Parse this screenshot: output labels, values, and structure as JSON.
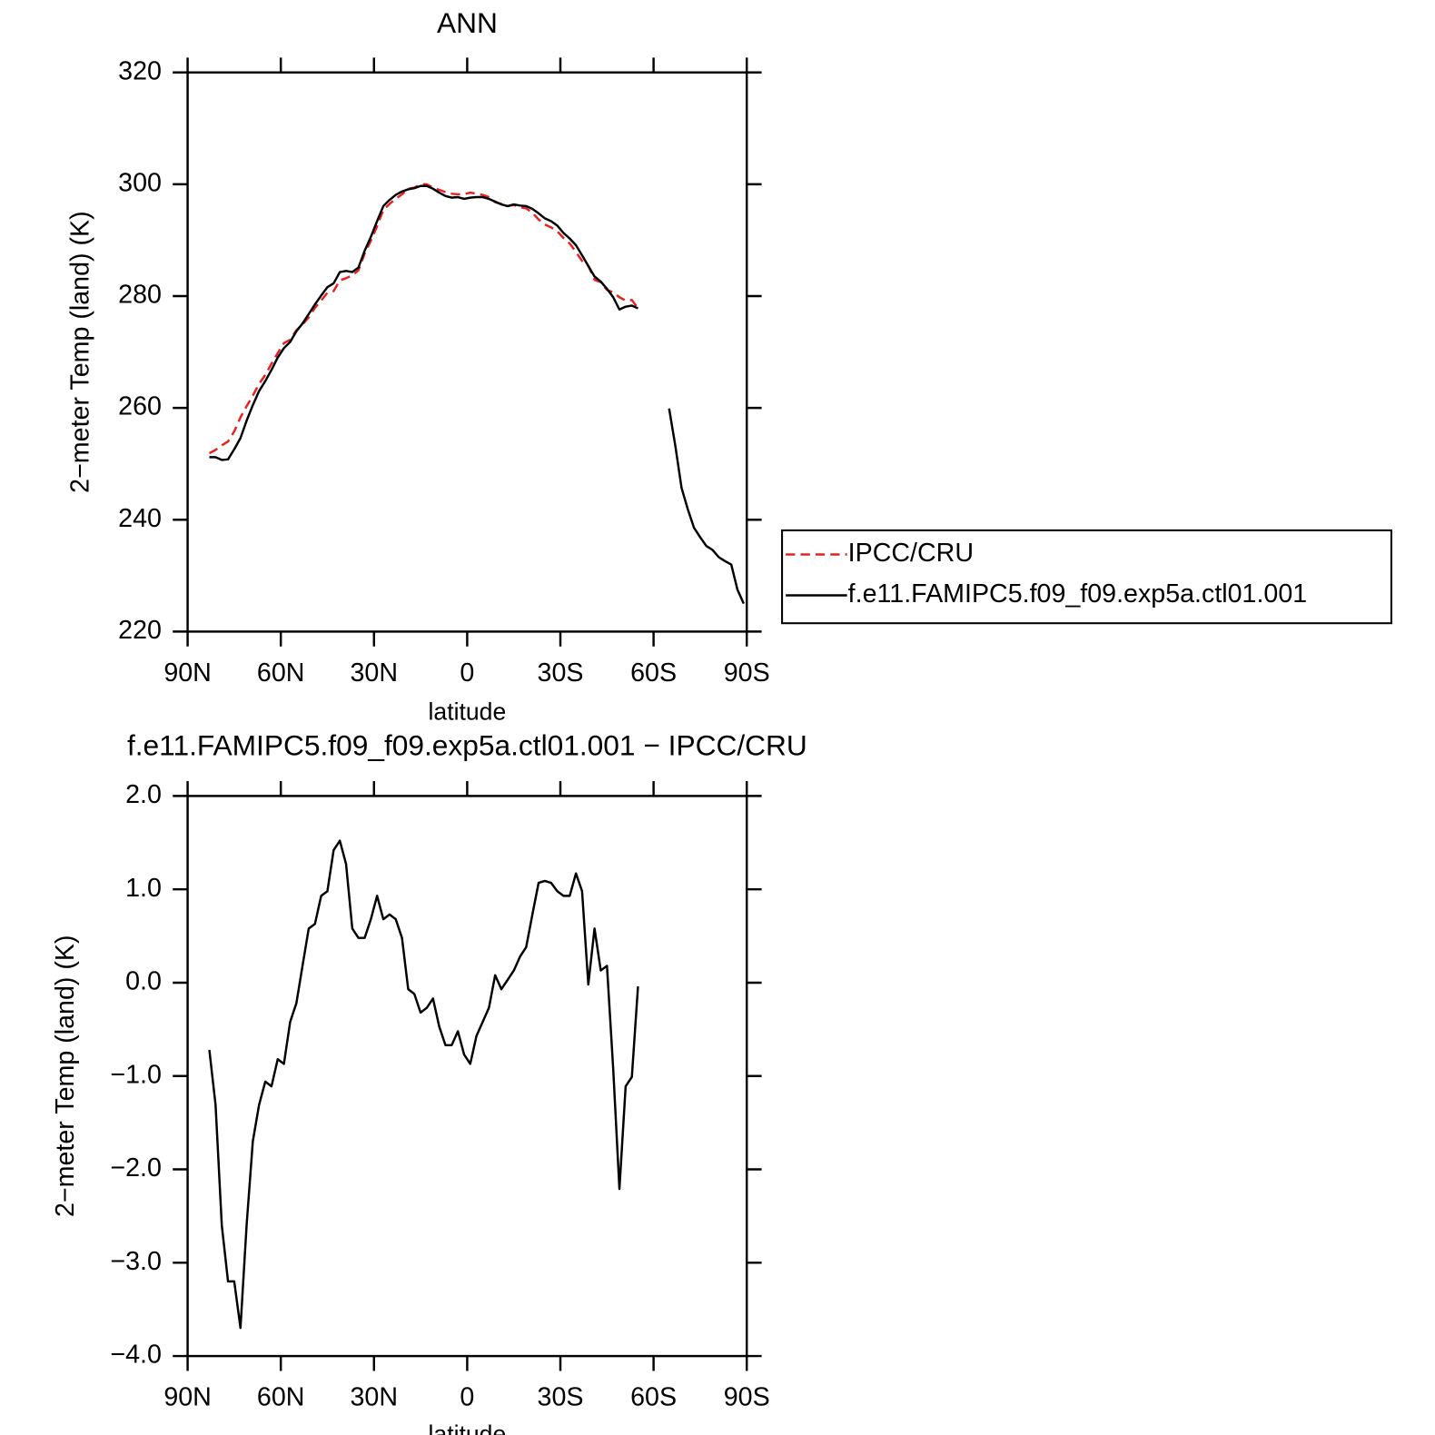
{
  "chart_data": [
    {
      "type": "line",
      "title": "ANN",
      "x_label": "latitude",
      "y_label": "2−meter Temp (land) (K)",
      "x": [
        83,
        81,
        79,
        77,
        75,
        73,
        71,
        69,
        67,
        65,
        63,
        61,
        59,
        57,
        55,
        53,
        51,
        49,
        47,
        45,
        43,
        41,
        39,
        37,
        35,
        33,
        31,
        29,
        27,
        25,
        23,
        21,
        19,
        17,
        15,
        13,
        11,
        9,
        7,
        5,
        3,
        1,
        -1,
        -3,
        -5,
        -7,
        -9,
        -11,
        -13,
        -15,
        -17,
        -19,
        -21,
        -23,
        -25,
        -27,
        -29,
        -31,
        -33,
        -35,
        -37,
        -39,
        -41,
        -43,
        -45,
        -47,
        -49,
        -51,
        -53,
        -55,
        -57,
        -59,
        -61,
        -63,
        -65,
        -67,
        -69,
        -71,
        -73,
        -75,
        -77,
        -79,
        -81,
        -83,
        -85,
        -87,
        -89
      ],
      "series": [
        {
          "name": "IPCC/CRU",
          "color": "#e8201e",
          "line_style": "dashed",
          "values": [
            251.9,
            252.5,
            253.3,
            254.0,
            255.8,
            258.3,
            260.3,
            262.2,
            264.3,
            265.9,
            267.9,
            269.8,
            271.6,
            272.2,
            273.9,
            274.9,
            276.2,
            277.9,
            279.2,
            280.6,
            280.9,
            282.8,
            283.2,
            283.7,
            284.6,
            287.6,
            289.9,
            292.5,
            295.4,
            296.5,
            297.4,
            298.2,
            299.2,
            299.4,
            300.0,
            300.0,
            299.4,
            299.0,
            298.6,
            298.3,
            298.2,
            298.2,
            298.5,
            298.3,
            298.1,
            297.7,
            296.8,
            296.5,
            296.1,
            296.3,
            295.9,
            295.7,
            294.9,
            293.7,
            292.8,
            292.3,
            291.6,
            290.4,
            289.4,
            287.9,
            286.3,
            285.4,
            282.9,
            282.5,
            281.1,
            280.7,
            279.8,
            279.2,
            279.3,
            277.8,
            null,
            null,
            null,
            null,
            null,
            null,
            null,
            null,
            null,
            null,
            null,
            null,
            null,
            null,
            null,
            null,
            null
          ]
        },
        {
          "name": "f.e11.FAMIPC5.f09_f09.exp5a.ctl01.001",
          "color": "#000000",
          "line_style": "solid",
          "values": [
            251.2,
            251.2,
            250.7,
            250.8,
            252.6,
            254.6,
            257.7,
            260.5,
            263.0,
            264.8,
            266.8,
            269.0,
            270.7,
            271.8,
            273.7,
            275.1,
            276.8,
            278.5,
            280.1,
            281.6,
            282.3,
            284.3,
            284.5,
            284.3,
            285.1,
            288.1,
            290.6,
            293.4,
            296.1,
            297.2,
            298.1,
            298.7,
            299.1,
            299.3,
            299.7,
            299.7,
            299.2,
            298.5,
            297.9,
            297.6,
            297.7,
            297.4,
            297.6,
            297.7,
            297.7,
            297.4,
            296.9,
            296.4,
            296.1,
            296.4,
            296.2,
            296.1,
            295.6,
            294.8,
            293.9,
            293.4,
            292.6,
            291.3,
            290.3,
            289.1,
            287.3,
            285.4,
            283.5,
            282.6,
            281.3,
            279.8,
            277.6,
            278.1,
            278.3,
            277.8,
            null,
            null,
            null,
            null,
            259.9,
            253.2,
            245.7,
            241.9,
            238.6,
            236.9,
            235.3,
            234.6,
            233.3,
            232.6,
            232.0,
            227.5,
            225.0
          ]
        }
      ],
      "xlim": [
        90,
        -90
      ],
      "xticks": [
        {
          "value": 90,
          "label": "90N"
        },
        {
          "value": 60,
          "label": "60N"
        },
        {
          "value": 30,
          "label": "30N"
        },
        0,
        {
          "value": -30,
          "label": "30S"
        },
        {
          "value": -60,
          "label": "60S"
        },
        {
          "value": -90,
          "label": "90S"
        }
      ],
      "ylim": [
        220,
        320
      ],
      "yticks": [
        220,
        240,
        260,
        280,
        300,
        320
      ],
      "legend": "right"
    },
    {
      "type": "line",
      "title": "f.e11.FAMIPC5.f09_f09.exp5a.ctl01.001 − IPCC/CRU",
      "x_label": "latitude",
      "y_label": "2−meter Temp (land) (K)",
      "x": [
        83,
        81,
        79,
        77,
        75,
        73,
        71,
        69,
        67,
        65,
        63,
        61,
        59,
        57,
        55,
        53,
        51,
        49,
        47,
        45,
        43,
        41,
        39,
        37,
        35,
        33,
        31,
        29,
        27,
        25,
        23,
        21,
        19,
        17,
        15,
        13,
        11,
        9,
        7,
        5,
        3,
        1,
        -1,
        -3,
        -5,
        -7,
        -9,
        -11,
        -13,
        -15,
        -17,
        -19,
        -21,
        -23,
        -25,
        -27,
        -29,
        -31,
        -33,
        -35,
        -37,
        -39,
        -41,
        -43,
        -45,
        -47,
        -49,
        -51,
        -53,
        -55
      ],
      "values": [
        -0.72,
        -1.31,
        -2.6,
        -3.2,
        -3.2,
        -3.7,
        -2.6,
        -1.7,
        -1.31,
        -1.06,
        -1.11,
        -0.82,
        -0.87,
        -0.42,
        -0.22,
        0.18,
        0.58,
        0.63,
        0.93,
        0.98,
        1.42,
        1.52,
        1.27,
        0.58,
        0.48,
        0.48,
        0.68,
        0.93,
        0.68,
        0.73,
        0.68,
        0.48,
        -0.07,
        -0.12,
        -0.32,
        -0.27,
        -0.17,
        -0.47,
        -0.67,
        -0.67,
        -0.52,
        -0.77,
        -0.87,
        -0.57,
        -0.42,
        -0.27,
        0.08,
        -0.07,
        0.03,
        0.13,
        0.28,
        0.38,
        0.73,
        1.07,
        1.09,
        1.07,
        0.98,
        0.93,
        0.93,
        1.17,
        0.98,
        -0.02,
        0.58,
        0.13,
        0.18,
        -0.92,
        -2.21,
        -1.11,
        -1.01,
        -0.04
      ],
      "color": "#000000",
      "xlim": [
        90,
        -90
      ],
      "xticks": [
        {
          "value": 90,
          "label": "90N"
        },
        {
          "value": 60,
          "label": "60N"
        },
        {
          "value": 30,
          "label": "30N"
        },
        0,
        {
          "value": -30,
          "label": "30S"
        },
        {
          "value": -60,
          "label": "60S"
        },
        {
          "value": -90,
          "label": "90S"
        }
      ],
      "ylim": [
        -4,
        2
      ],
      "yticks": [
        {
          "value": -4,
          "label": "−4.0"
        },
        {
          "value": -3,
          "label": "−3.0"
        },
        {
          "value": -2,
          "label": "−2.0"
        },
        {
          "value": -1,
          "label": "−1.0"
        },
        {
          "value": 0,
          "label": "0.0"
        },
        {
          "value": 1,
          "label": "1.0"
        },
        {
          "value": 2,
          "label": "2.0"
        }
      ]
    }
  ]
}
